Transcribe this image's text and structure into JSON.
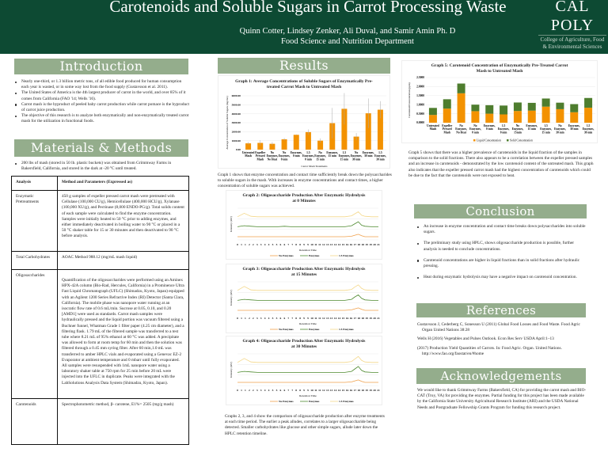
{
  "header": {
    "title": "Carotenoids and Soluble Sugars in Carrot Processing Waste",
    "authors": "Quinn Cotter, Lindsey Zenker, Ali Duval, and Samir Amin Ph. D",
    "department": "Food Science and Nutrition Department",
    "logo_main": "CAL POLY",
    "logo_sub": "College of Agriculture, Food & Environmental Sciences",
    "bg_color": "#0d4a33"
  },
  "colors": {
    "section_header": "#94ad8c",
    "orange": "#f39200",
    "green": "#4e8a2f",
    "yellow": "#f4d88a"
  },
  "introduction": {
    "heading": "Introduction",
    "bullets": [
      "Nearly one-third, or 1.3 billion metric tons, of all edible food produced for human consumption each year is wasted, or in some way lost from the food supply (Gustavsson et al. 2011).",
      "The United States of America is the 4th largest producer of carrot in the world, and over 85% of it comes from California (FAO '14; Wells '16).",
      "Carrot mash is the byproduct of peeled baby carrot production while carrot pomace is the byproduct of carrot juice production.",
      "The objective of this research is to analyze both enzymatically and non-enzymatically treated carrot mash for the utilization in functional foods."
    ]
  },
  "methods": {
    "heading": "Materials & Methods",
    "bullet": "200 lbs of mash (stored in 50 lb. plastic buckets) was obtained from Grimmway Farms in Bakersfield, California, and stored in the dark at -20 °C until treated.",
    "table": {
      "headers": [
        "Analysis",
        "Method and Parameters (Expressed as)"
      ],
      "rows": [
        [
          "Enzymatic Pretreatments",
          "450 g samples of expeller pressed carrot mash were pretreated with Cellulase (100,000 CU/g), Hemicellulase (400,000 HCU/g), Xylanase (100,000 XU/g), and Pectinase (8,000 ENDO-PG/g). Total solids content of each sample were calculated to find the enzyme concentration. Samples were initially heated to 50 °C prior to adding enzymes, and either immediately deactivated in boiling water to 90 °C or placed in a 50 °C shaker table for 15 or 30 minutes and then deactivated to 90 °C before analysis."
        ],
        [
          "Total Carbohydrates",
          "AOAC Method 988.12 (mg/mL mash liquid)"
        ],
        [
          "Oligosaccharides",
          "Quantification of the oligosaccharides were performed using an Aminex HPX-42A column (Bio-Rad, Hercules, California) in a Prominence Ultra Fast Liquid Chromatograph (UFLC) (Shimadzu, Kyoto, Japan) equipped with an Agilent 1200 Series Refractive Index (RI) Detector (Santa Clara, California). The mobile phase was nanopore water running at an isocratic flow rate of 0.6 mL/min. Sucrose at 0.05, 0.10, and 0.20 [AMD1] were used as standards. Carrot mash samples were hydraulically pressed and the liquid portion was vacuum filtered using a Buchner funnel, Whatman Grade 1 filter paper (4.25 cm diameter), and a filtering flask. 1.79 mL of the filtered sample was transferred to a test tube where 8.21 mL of 95% ethanol at 60 °C was added. A precipitate was allowed to form at room temp for 60 min and then the solution was filtered through a 0.45 mm syring filter. After 60 min,1.0 mL was transferred to amber HPLC vials and evaporated using a Genevac EZ-2 Evaporator at ambient temperature and 0 mbarr until fully evaporated. All samples were resuspended with 1mL nanopore water using a laboratory shaker table at 750 rpm for 25 min before 20 mL were injected into the UFLC in duplicate. Peaks were integrated with the LabSolutions Analysis Data System (Shimadzu, Kyoto, Japan)."
        ],
        [
          "Carotenoids",
          "Spectrophotometric method, β- carotene, E1%= 2505 (mg/g mash)"
        ]
      ]
    }
  },
  "results": {
    "heading": "Results",
    "text1": "Graph 1 shows that enzyme concentration and contact time sufficiently break down the polysaccharides to soluble sugars in the mash. With increases in enzyme concentrations and contact times, a higher concentration of soluble sugars was achieved.",
    "text2": "Graphs 2, 3, and 4 show the comparison of oligosaccharide production after enzyme treatments at each time period. The earlier a peak alludes, correlates to a larger oligosaccharide being detected. Smaller carbohydrates like glucose and other simple sugars, allude later down the HPLC retention timeline.",
    "text3": "Graph 5 shows that there was a higher prevalence of carotenoids in the liquid fraction of the samples in comparison to the solid fractions. There also appears to be a correlation between the expeller pressed samples and an increase in carotenoids - demonstrated by the low carotenoid content of the untreated mash. This graph also indicates that the expeller pressed carrot mash had the highest concentration of carotenoids which could be due to the fact that the carotenoids were not exposed to heat."
  },
  "chart_data": [
    {
      "type": "bar",
      "title": "Graph 1: Average Concentrations of Soluble Sugars of Enzymatically Pre-treated Carrot Mash to Untreated Mash",
      "xlabel": "Carrot Mash Treatments",
      "ylabel": "Average Concentration of Soluble Sugars (mg/mL)",
      "ylim": [
        0,
        6000
      ],
      "yticks": [
        "0.00",
        "1000.00",
        "2000.00",
        "3000.00",
        "4000.00",
        "5000.00",
        "6000.00"
      ],
      "categories": [
        "Untreated Mash",
        "Expeller Pressed Mash",
        "No Enzymes, No Heat",
        "No Enzymes, 0 min",
        "Enzymes, 0 min",
        "1.5 Enzymes, 0 min",
        "No Enzymes, 15 min",
        "Enzymes, 15 min",
        "1.5 Enzymes, 15 min",
        "No Enzymes, 30 min",
        "Enzymes, 30 min",
        "1.5 Enzymes, 30 min"
      ],
      "values": [
        700,
        750,
        650,
        1150,
        1650,
        1950,
        1000,
        2950,
        4550,
        1450,
        4050,
        4450
      ],
      "errors": [
        150,
        300,
        200,
        150,
        50,
        300,
        250,
        1700,
        1750,
        400,
        1650,
        950
      ],
      "color": "#f39200",
      "grid": true
    },
    {
      "type": "line",
      "title": "Graph 2: Oligosaccharide Production After Enzymatic Hydrolysis at 0 Minutes",
      "xlabel": "Retention Time",
      "ylabel": "Intensity (mV)",
      "grid": true,
      "legend": "bottom",
      "xticks": [
        "0",
        "1",
        "1",
        "2",
        "2",
        "3",
        "3",
        "4",
        "4",
        "5",
        "5",
        "6",
        "6",
        "7",
        "7",
        "8",
        "8",
        "9",
        "9",
        "10",
        "11",
        "11",
        "12",
        "13",
        "13",
        "14",
        "14",
        "15",
        "16",
        "16",
        "17",
        "18",
        "18",
        "19",
        "19",
        "20",
        "21"
      ],
      "x": [
        0,
        1,
        2,
        3,
        4,
        5,
        6,
        7,
        8,
        9,
        10,
        11,
        12,
        13,
        14,
        15,
        16,
        17,
        17.5,
        18,
        18.5,
        19,
        20,
        21
      ],
      "series": [
        {
          "name": "No Enzymes",
          "color": "#f0a04b",
          "values": [
            0,
            0,
            0,
            0,
            0,
            0,
            0,
            0,
            0,
            0,
            0,
            0,
            0,
            0,
            0,
            0,
            0,
            0.05,
            0.15,
            0.25,
            0.1,
            0,
            0,
            0
          ]
        },
        {
          "name": "Enzymes",
          "color": "#4e8a2f",
          "values": [
            1,
            1.1,
            1.05,
            1,
            1,
            1,
            1,
            1.05,
            1,
            1,
            1,
            1,
            1,
            1,
            1,
            1,
            1,
            1.1,
            1.3,
            1.5,
            1.15,
            1.05,
            1,
            1
          ]
        },
        {
          "name": "1.5 Enzymes",
          "color": "#f4d88a",
          "values": [
            2,
            2.35,
            2.05,
            2,
            2,
            2,
            2,
            2,
            2,
            2,
            2,
            2,
            2,
            2,
            2,
            2,
            2,
            2.1,
            2.3,
            2.5,
            2.15,
            2.05,
            2,
            2
          ]
        }
      ]
    },
    {
      "type": "line",
      "title": "Graph 3: Oligosaccharide Production After Enzymatic Hydrolysis at 15 Minutes",
      "xlabel": "Retention Time",
      "ylabel": "Intensity (mV)",
      "grid": true,
      "legend": "bottom",
      "xticks": [
        "0",
        "1",
        "1",
        "2",
        "2",
        "3",
        "3",
        "4",
        "4",
        "5",
        "5",
        "6",
        "6",
        "7",
        "7",
        "8",
        "8",
        "9",
        "9",
        "10",
        "11",
        "11",
        "12",
        "13",
        "13",
        "14",
        "14",
        "15",
        "16",
        "16",
        "17",
        "18",
        "18",
        "19",
        "19",
        "20",
        "21"
      ],
      "x": [
        0,
        1,
        2,
        3,
        4,
        5,
        6,
        7,
        8,
        9,
        10,
        11,
        12,
        13,
        14,
        15,
        16,
        17,
        17.5,
        18,
        18.5,
        19,
        20,
        21
      ],
      "series": [
        {
          "name": "No Enzymes",
          "color": "#f0a04b",
          "values": [
            0,
            0,
            0,
            0,
            0,
            0,
            0,
            0,
            0,
            0,
            0,
            0,
            0,
            0,
            0,
            0,
            0,
            0.05,
            0.15,
            0.25,
            0.1,
            0,
            0,
            0
          ]
        },
        {
          "name": "Enzymes",
          "color": "#4e8a2f",
          "values": [
            1,
            1.1,
            1.05,
            1,
            1,
            1,
            1,
            1,
            1,
            1,
            1,
            1,
            1,
            1,
            1,
            1,
            1,
            1.1,
            1.35,
            1.55,
            1.2,
            1.05,
            1,
            1
          ]
        },
        {
          "name": "1.5 Enzymes",
          "color": "#f4d88a",
          "values": [
            2,
            2.4,
            2.05,
            2,
            2,
            2,
            2,
            2,
            2,
            2,
            2,
            2,
            2,
            2,
            2,
            2,
            2,
            2.1,
            2.35,
            2.55,
            2.2,
            2.05,
            2,
            2
          ]
        }
      ]
    },
    {
      "type": "line",
      "title": "Graph 4: Oligosaccharide Production After Enzymatic Hydrolysis at 30 Minutes",
      "xlabel": "Retention Time",
      "ylabel": "Intensity (mV)",
      "grid": true,
      "legend": "bottom",
      "xticks": [
        "0",
        "1",
        "1",
        "2",
        "2",
        "3",
        "3",
        "4",
        "4",
        "5",
        "5",
        "6",
        "6",
        "7",
        "7",
        "8",
        "8",
        "9",
        "9",
        "10",
        "11",
        "11",
        "12",
        "13",
        "13",
        "14",
        "14",
        "15",
        "16",
        "16",
        "17",
        "18",
        "18",
        "19",
        "19",
        "20",
        "21"
      ],
      "x": [
        0,
        1,
        2,
        3,
        4,
        5,
        6,
        7,
        8,
        9,
        10,
        11,
        12,
        13,
        14,
        15,
        16,
        17,
        17.5,
        18,
        18.5,
        19,
        20,
        21
      ],
      "series": [
        {
          "name": "No Enzymes",
          "color": "#f0a04b",
          "values": [
            0,
            0,
            0,
            0,
            0,
            0,
            0,
            0,
            0,
            0,
            0,
            0,
            0,
            0,
            0,
            0,
            0,
            0.05,
            0.15,
            0.25,
            0.1,
            0,
            0,
            0
          ]
        },
        {
          "name": "Enzymes",
          "color": "#4e8a2f",
          "values": [
            1,
            1.1,
            1.05,
            1,
            1,
            1,
            1,
            1,
            1,
            1,
            1,
            1,
            1,
            1,
            1,
            1,
            1,
            1.1,
            1.35,
            1.6,
            1.2,
            1.05,
            1,
            1
          ]
        },
        {
          "name": "1.5 Enzymes",
          "color": "#f4d88a",
          "values": [
            2,
            2.4,
            2.05,
            2,
            2,
            2,
            2,
            2,
            2,
            2,
            2,
            2,
            2,
            2,
            2,
            2,
            2,
            2.1,
            2.35,
            2.6,
            2.2,
            2.05,
            2,
            2
          ]
        }
      ]
    },
    {
      "type": "bar",
      "stacked": true,
      "title": "Graph 5: Carotenoid Concentration of Enzymatically Pre-Treated Carrot Mash to Untreated Mash",
      "ylabel": "Carotenoid Concentration (ppm)",
      "ylim": [
        0,
        2.5
      ],
      "yticks": [
        "0.0000",
        "0.5000",
        "1.0000",
        "1.5000",
        "2.0000",
        "2.5000"
      ],
      "grid": true,
      "legend": "bottom",
      "categories": [
        "Untreated Mash",
        "Expeller Pressed Mash",
        "No Enzymes, No Heat",
        "No Enzymes, 0 min",
        "Enzymes, 0 min",
        "1.5 Enzymes, 0 min",
        "No Enzymes, 15min",
        "Enzymes, 15 min",
        "1.5 Enzymes, 15 min",
        "No Enzymes, 30 min",
        "Enzymes, 30 min",
        "1.5 Enzymes, 30 min"
      ],
      "series": [
        {
          "name": "Liquid Concentration",
          "color": "#f39200",
          "values": [
            0.43,
            0.78,
            1.63,
            0.64,
            0.5,
            0.46,
            0.65,
            0.67,
            0.89,
            0.75,
            0.58,
            0.83
          ]
        },
        {
          "name": "Solid Concentration",
          "color": "#4e7d2e",
          "values": [
            0.39,
            0.52,
            0.54,
            0.36,
            0.47,
            0.49,
            0.47,
            0.43,
            0.45,
            0.36,
            0.45,
            0.54
          ]
        }
      ]
    }
  ],
  "conclusion": {
    "heading": "Conclusion",
    "bullets": [
      "An increase  in enzyme concentration and contact time breaks down polysaccharides into soluble sugars.",
      "The preliminary study using HPLC, shows oligosaccharide production is possible, further analysis is needed to conclude concentrations.",
      "Carotenoid concentrations are higher in liquid fractions than in solid fractions after hydraulic pressing.",
      "Heat during enzymatic hydrolysis may have a negative impact on carotenoid concentration."
    ]
  },
  "references": {
    "heading": "References",
    "items": [
      "Gustavsson J, Cederberg C, Sonesson U (2011) Global Food Losses and Food Waste. Food Agric Organ United Nations 38:28",
      "Wells H (2016) Vegetables and Pulses Outlook. Econ Res Serv USDA April:1–13",
      "(2017) Production Yield Quantities of Carrots. In: Food Agric. Organ. United Nations. http://www.fao.org/faostat/en/#home"
    ]
  },
  "acknowledgements": {
    "heading": "Acknowledgements",
    "text": "We would like to thank Grimmway Farms (Bakersfield, CA) for providing the carrot mash and BIO-CAT (Troy, VA) for providing the enzymes. Partial funding for this project has been made available by the California State University Agricultural Research Institute (ARI) and the USDA National Needs and Postgraduate Fellowship Grants Program for funding this research project."
  }
}
